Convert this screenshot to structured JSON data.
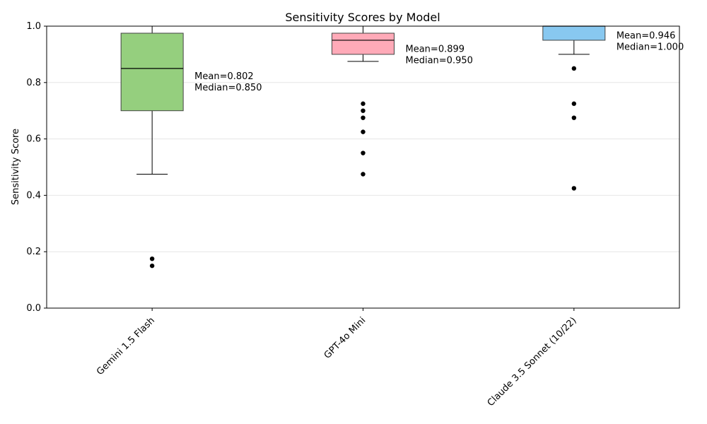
{
  "chart_data": {
    "type": "box",
    "title": "Sensitivity Scores by Model",
    "xlabel": "",
    "ylabel": "Sensitivity Score",
    "ylim": [
      0,
      1
    ],
    "yticks": [
      "0.0",
      "0.2",
      "0.4",
      "0.6",
      "0.8",
      "1.0"
    ],
    "grid": "horizontal",
    "categories": [
      "Gemini 1.5 Flash",
      "GPT-4o Mini",
      "Claude 3.5 Sonnet (10/22)"
    ],
    "boxes": [
      {
        "q1": 0.7,
        "median": 0.85,
        "q3": 0.975,
        "whisker_low": 0.475,
        "whisker_high": 1.0,
        "outliers": [
          0.175,
          0.15
        ],
        "color": "#95cf7e",
        "mean_label": "Mean=0.802",
        "median_label": "Median=0.850",
        "mean": 0.802
      },
      {
        "q1": 0.9,
        "median": 0.95,
        "q3": 0.975,
        "whisker_low": 0.875,
        "whisker_high": 1.0,
        "outliers": [
          0.725,
          0.7,
          0.675,
          0.625,
          0.55,
          0.475
        ],
        "color": "#ffaab8",
        "mean_label": "Mean=0.899",
        "median_label": "Median=0.950",
        "mean": 0.899
      },
      {
        "q1": 0.95,
        "median": 1.0,
        "q3": 1.0,
        "whisker_low": 0.9,
        "whisker_high": 1.0,
        "outliers": [
          0.85,
          0.725,
          0.675,
          0.425
        ],
        "color": "#88c8f0",
        "mean_label": "Mean=0.946",
        "median_label": "Median=1.000",
        "mean": 0.946
      }
    ]
  }
}
